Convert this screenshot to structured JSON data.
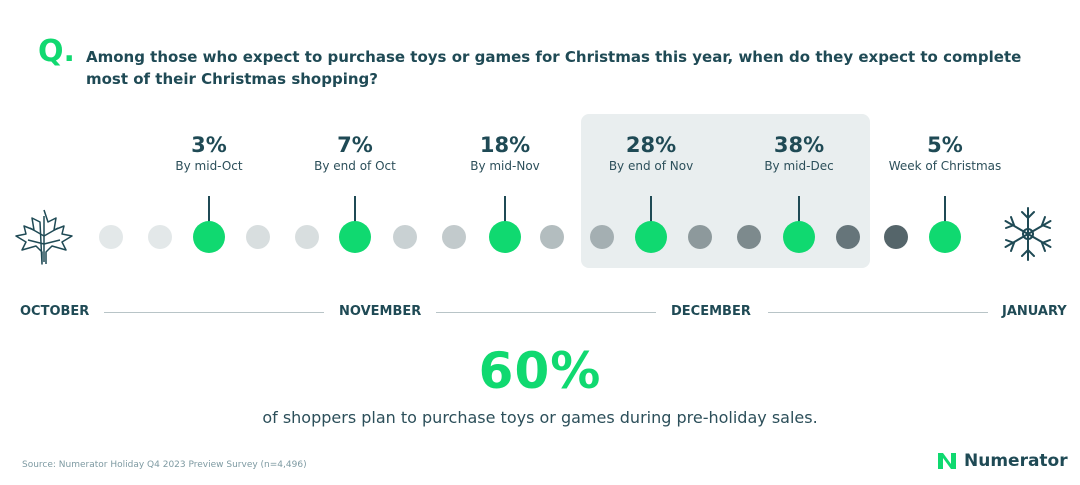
{
  "header": {
    "q_marker": "Q.",
    "question": "Among those who expect to purchase toys or games for Christmas this year, when do they expect to complete most of their Christmas shopping?"
  },
  "chart_data": {
    "type": "timeline",
    "categories": [
      "By mid-Oct",
      "By end of Oct",
      "By mid-Nov",
      "By end of Nov",
      "By mid-Dec",
      "Week of Christmas"
    ],
    "values": [
      3,
      7,
      18,
      28,
      38,
      5
    ],
    "value_labels": [
      "3%",
      "7%",
      "18%",
      "28%",
      "38%",
      "5%"
    ],
    "highlighted": [
      "By end of Nov",
      "By mid-Dec"
    ],
    "months": [
      "OCTOBER",
      "NOVEMBER",
      "DECEMBER",
      "JANUARY"
    ],
    "accent_color": "#10d970"
  },
  "summary": {
    "stat": "60%",
    "text": "of shoppers plan to purchase toys or games during pre-holiday sales."
  },
  "footer": {
    "source": "Source: Numerator Holiday Q4 2023 Preview Survey (n=4,496)",
    "brand": "Numerator"
  },
  "icons": {
    "left": "maple-leaf-icon",
    "right": "snowflake-icon",
    "logo": "numerator-logo-icon"
  }
}
